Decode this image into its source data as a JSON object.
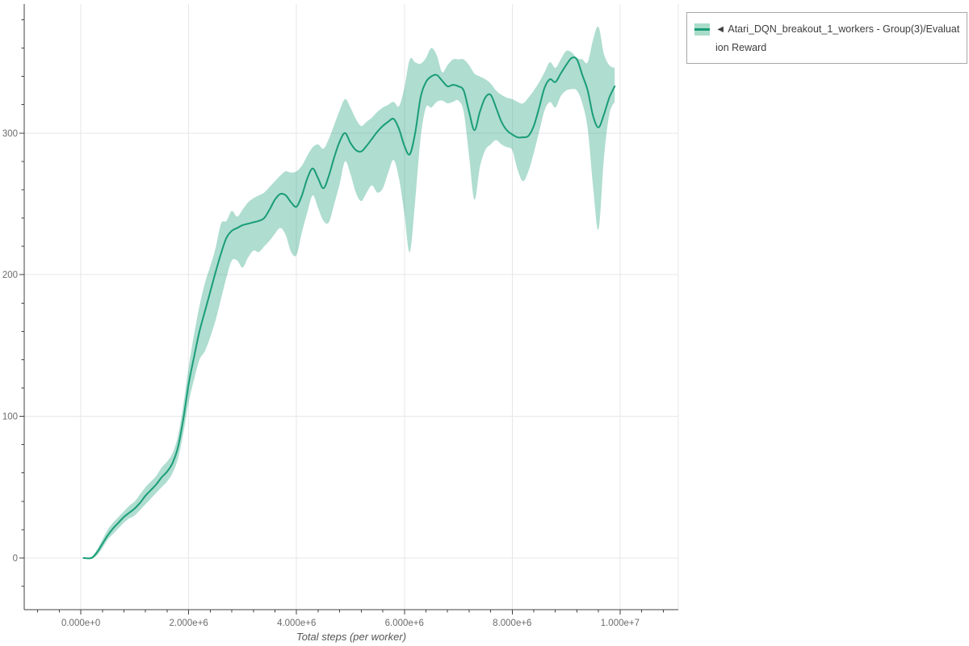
{
  "chart_data": {
    "type": "line",
    "title": "",
    "xlabel": "Total steps (per worker)",
    "ylabel": "",
    "x_unit": "steps, millions",
    "grid": true,
    "legend_position": "top-right",
    "x_range": [
      -1.05,
      11.08
    ],
    "y_range": [
      -36.5,
      391.1
    ],
    "x_ticks": {
      "values": [
        0,
        2,
        4,
        6,
        8,
        10
      ],
      "labels": [
        "0.000e+0",
        "2.000e+6",
        "4.000e+6",
        "6.000e+6",
        "8.000e+6",
        "1.000e+7"
      ],
      "minor_step": 0.4
    },
    "y_ticks": {
      "values": [
        0,
        100,
        200,
        300
      ],
      "labels": [
        "0",
        "100",
        "200",
        "300"
      ],
      "minor_step": 20,
      "minor_min": -20,
      "minor_max": 380
    },
    "x_millions": [
      0.05,
      0.2,
      0.3,
      0.4,
      0.5,
      0.6,
      0.7,
      0.8,
      0.9,
      1.0,
      1.1,
      1.2,
      1.3,
      1.4,
      1.5,
      1.6,
      1.7,
      1.8,
      1.9,
      2.0,
      2.1,
      2.2,
      2.3,
      2.4,
      2.5,
      2.6,
      2.7,
      2.8,
      2.9,
      3.0,
      3.1,
      3.2,
      3.3,
      3.4,
      3.5,
      3.6,
      3.7,
      3.8,
      3.9,
      4.0,
      4.1,
      4.2,
      4.3,
      4.4,
      4.5,
      4.6,
      4.7,
      4.8,
      4.9,
      5.0,
      5.1,
      5.2,
      5.3,
      5.4,
      5.5,
      5.6,
      5.7,
      5.8,
      5.9,
      6.0,
      6.1,
      6.2,
      6.3,
      6.4,
      6.5,
      6.6,
      6.7,
      6.8,
      6.9,
      7.0,
      7.1,
      7.2,
      7.3,
      7.4,
      7.5,
      7.6,
      7.7,
      7.8,
      7.9,
      8.0,
      8.1,
      8.2,
      8.3,
      8.4,
      8.5,
      8.6,
      8.7,
      8.8,
      8.9,
      9.0,
      9.1,
      9.2,
      9.3,
      9.4,
      9.5,
      9.6,
      9.7,
      9.8,
      9.9
    ],
    "series": [
      {
        "name": "Atari_DQN_breakout_1_workers - Group(3)/Evaluation Reward",
        "values": [
          0,
          0,
          4,
          10,
          16,
          21,
          25,
          29,
          32,
          35,
          39,
          44,
          48,
          52,
          57,
          61,
          67,
          78,
          98,
          123,
          142,
          160,
          174,
          188,
          202,
          215,
          226,
          231,
          233,
          235,
          236,
          237,
          238,
          240,
          246,
          253,
          257,
          256,
          251,
          248,
          256,
          268,
          275,
          268,
          261,
          270,
          283,
          294,
          300,
          293,
          288,
          287,
          291,
          296,
          301,
          305,
          308,
          310,
          303,
          291,
          285,
          300,
          325,
          336,
          340,
          341,
          337,
          333,
          334,
          333,
          330,
          315,
          302,
          315,
          325,
          327,
          318,
          308,
          302,
          299,
          297,
          297,
          298,
          305,
          318,
          332,
          338,
          336,
          342,
          348,
          353,
          352,
          341,
          330,
          312,
          304,
          313,
          325,
          333
        ],
        "band_lower": [
          0,
          0,
          2,
          7,
          13,
          17,
          21,
          25,
          28,
          30,
          34,
          38,
          42,
          46,
          50,
          54,
          60,
          70,
          88,
          110,
          126,
          140,
          146,
          156,
          168,
          183,
          198,
          210,
          210,
          205,
          212,
          217,
          216,
          220,
          224,
          229,
          233,
          228,
          216,
          214,
          230,
          244,
          256,
          247,
          238,
          237,
          250,
          264,
          280,
          271,
          258,
          252,
          258,
          263,
          258,
          261,
          272,
          281,
          268,
          243,
          216,
          252,
          296,
          318,
          318,
          322,
          323,
          321,
          322,
          323,
          315,
          284,
          253,
          276,
          288,
          292,
          295,
          292,
          290,
          288,
          274,
          266,
          273,
          286,
          301,
          316,
          322,
          318,
          326,
          330,
          331,
          330,
          321,
          303,
          262,
          232,
          282,
          313,
          322
        ],
        "band_upper": [
          0,
          1,
          6,
          13,
          20,
          25,
          29,
          33,
          37,
          40,
          45,
          50,
          54,
          58,
          64,
          68,
          74,
          86,
          108,
          135,
          158,
          178,
          194,
          206,
          219,
          236,
          238,
          245,
          241,
          246,
          251,
          254,
          256,
          258,
          262,
          266,
          270,
          273,
          272,
          273,
          277,
          284,
          290,
          292,
          289,
          296,
          306,
          316,
          324,
          318,
          310,
          305,
          308,
          311,
          315,
          318,
          320,
          322,
          319,
          332,
          352,
          350,
          349,
          353,
          360,
          355,
          343,
          348,
          352,
          352,
          352,
          348,
          342,
          340,
          338,
          335,
          330,
          327,
          325,
          324,
          322,
          321,
          325,
          330,
          336,
          343,
          350,
          346,
          352,
          358,
          357,
          353,
          352,
          350,
          366,
          375,
          356,
          348,
          346
        ]
      }
    ]
  },
  "legend": {
    "marker": "◄",
    "series_name": "Atari_DQN_breakout_1_workers - Group(3)/Evaluation Reward"
  },
  "colors": {
    "line": "#199d77",
    "band": "rgba(25,157,119,0.35)",
    "band_solid": "#a9dcc9",
    "grid": "#e7e7e7",
    "axis": "#404040",
    "tick_label": "#6b6b6b",
    "axis_title": "#555555",
    "legend_border": "#a8a8a8",
    "legend_text": "#3d3d3d"
  }
}
